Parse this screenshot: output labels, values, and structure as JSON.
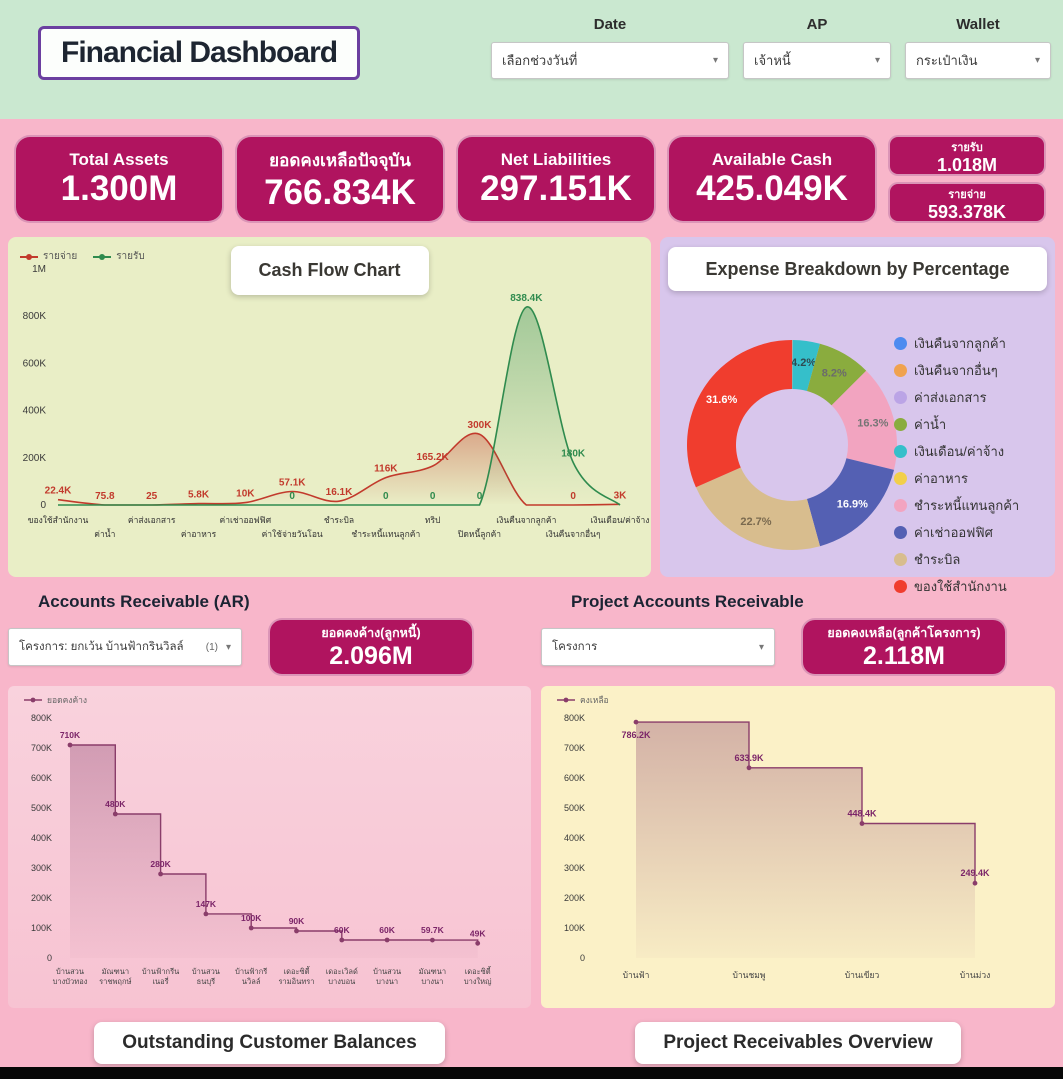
{
  "header": {
    "title": "Financial Dashboard",
    "filters": [
      {
        "label": "Date",
        "value": "เลือกช่วงวันที่"
      },
      {
        "label": "AP",
        "value": "เจ้าหนี้"
      },
      {
        "label": "Wallet",
        "value": "กระเป๋าเงิน"
      }
    ]
  },
  "kpi_cards": [
    {
      "label": "Total Assets",
      "value": "1.300M"
    },
    {
      "label": "ยอดคงเหลือปัจจุบัน",
      "value": "766.834K"
    },
    {
      "label": "Net Liabilities",
      "value": "297.151K"
    },
    {
      "label": "Available Cash",
      "value": "425.049K"
    }
  ],
  "kpi_small": [
    {
      "label": "รายรับ",
      "value": "1.018M"
    },
    {
      "label": "รายจ่าย",
      "value": "593.378K"
    }
  ],
  "sections": {
    "cashflow_title": "Cash Flow Chart",
    "expense_title": "Expense Breakdown by Percentage",
    "ar_header": "Accounts Receivable (AR)",
    "ar_filter_value": "โครงการ: ยกเว้น บ้านฟ้ากรินวิลล์",
    "ar_filter_count": "(1)",
    "ar_kpi_label": "ยอดคงค้าง(ลูกหนี้)",
    "ar_kpi_value": "2.096M",
    "ar_chart_title": "Outstanding Customer Balances",
    "proj_header": "Project Accounts Receivable",
    "proj_filter_value": "โครงการ",
    "proj_kpi_label": "ยอดคงเหลือ(ลูกค้าโครงการ)",
    "proj_kpi_value": "2.118M",
    "proj_chart_title": "Project Receivables Overview"
  },
  "chart_data": [
    {
      "type": "line",
      "title": "Cash Flow Chart",
      "categories": [
        "ของใช้สำนักงาน",
        "ค่าน้ำ",
        "ค่าส่งเอกสาร",
        "ค่าอาหาร",
        "ค่าเช่าออฟฟิศ",
        "ค่าใช้จ่ายวันโอน",
        "ชำระบิล",
        "ชำระหนี้แทนลูกค้า",
        "ทริป",
        "ปิดหนี้ลูกค้า",
        "เงินคืนจากลูกค้า",
        "เงินคืนจากอื่นๆ",
        "เงินเดือน/ค่าจ้าง"
      ],
      "ylim": [
        0,
        1000000
      ],
      "yticks": [
        {
          "v": 0,
          "label": "0"
        },
        {
          "v": 200000,
          "label": "200K"
        },
        {
          "v": 400000,
          "label": "400K"
        },
        {
          "v": 600000,
          "label": "600K"
        },
        {
          "v": 800000,
          "label": "800K"
        },
        {
          "v": 1000000,
          "label": "1M"
        }
      ],
      "grid": false,
      "legend_position": "top-left",
      "series": [
        {
          "name": "รายจ่าย",
          "color": "#c23a2c",
          "values": [
            22400,
            75.8,
            25,
            5800,
            10000,
            57100,
            16100,
            116000,
            165200,
            300000,
            0,
            0,
            3000
          ],
          "labels": [
            "22.4K",
            "75.8",
            "25",
            "5.8K",
            "10K",
            "57.1K",
            "16.1K",
            "116K",
            "165.2K",
            "300K",
            null,
            "0",
            "3K"
          ]
        },
        {
          "name": "รายรับ",
          "color": "#2f8b4e",
          "values": [
            0,
            0,
            0,
            0,
            0,
            0,
            0,
            0,
            0,
            0,
            838400,
            180000,
            0
          ],
          "labels": [
            null,
            null,
            null,
            null,
            null,
            "0",
            null,
            "0",
            "0",
            "0",
            "838.4K",
            "180K",
            null
          ]
        }
      ]
    },
    {
      "type": "pie",
      "donut": true,
      "title": "Expense Breakdown by Percentage",
      "legend_position": "right",
      "legend": [
        {
          "label": "เงินคืนจากลูกค้า",
          "color": "#4d8bf0"
        },
        {
          "label": "เงินคืนจากอื่นๆ",
          "color": "#f0a24f"
        },
        {
          "label": "ค่าส่งเอกสาร",
          "color": "#bba4e6"
        },
        {
          "label": "ค่าน้ำ",
          "color": "#8aac3e"
        },
        {
          "label": "เงินเดือน/ค่าจ้าง",
          "color": "#35bfca"
        },
        {
          "label": "ค่าอาหาร",
          "color": "#f2cf4a"
        },
        {
          "label": "ชำระหนี้แทนลูกค้า",
          "color": "#f2a4c0"
        },
        {
          "label": "ค่าเช่าออฟฟิศ",
          "color": "#5460b3"
        },
        {
          "label": "ชำระบิล",
          "color": "#d8bd8e"
        },
        {
          "label": "ของใช้สำนักงาน",
          "color": "#f03d2e"
        }
      ],
      "slices": [
        {
          "name": "เงินคืนจากลูกค้า",
          "color": "#4d8bf0",
          "pct": 0.02,
          "label": null
        },
        {
          "name": "เงินคืนจากอื่นๆ",
          "color": "#f0a24f",
          "pct": 0.05,
          "label": null
        },
        {
          "name": "ค่าส่งเอกสาร",
          "color": "#bba4e6",
          "pct": 0.02,
          "label": null
        },
        {
          "name": "ค่าอาหาร",
          "color": "#f2cf4a",
          "pct": 0.01,
          "label": null
        },
        {
          "name": "เงินเดือน/ค่าจ้าง",
          "color": "#35bfca",
          "pct": 4.2,
          "label": "4.2%",
          "label_color": "#2f4a52"
        },
        {
          "name": "ค่าน้ำ",
          "color": "#8aac3e",
          "pct": 8.2,
          "label": "8.2%",
          "label_color": "#6b6b6b"
        },
        {
          "name": "ชำระหนี้แทนลูกค้า",
          "color": "#f2a4c0",
          "pct": 16.3,
          "label": "16.3%",
          "label_color": "#757575"
        },
        {
          "name": "ค่าเช่าออฟฟิศ",
          "color": "#5460b3",
          "pct": 16.9,
          "label": "16.9%",
          "label_color": "#ffffff"
        },
        {
          "name": "ชำระบิล",
          "color": "#d8bd8e",
          "pct": 22.7,
          "label": "22.7%",
          "label_color": "#7a6a4f"
        },
        {
          "name": "ของใช้สำนักงาน",
          "color": "#f03d2e",
          "pct": 31.6,
          "label": "31.6%",
          "label_color": "#ffffff"
        }
      ]
    },
    {
      "type": "line",
      "step": true,
      "title": "Outstanding Customer Balances",
      "series_name": "ยอดคงค้าง",
      "color": "#8a3d6a",
      "categories": [
        [
          "บ้านสวน",
          "บางบัวทอง"
        ],
        [
          "มัณฑนา",
          "ราชพฤกษ์"
        ],
        [
          "บ้านฟ้ากรีน",
          "เนอรี่"
        ],
        [
          "บ้านสวน",
          "ธนบุรี"
        ],
        [
          "บ้านฟ้ากรี",
          "นวิลล์"
        ],
        [
          "เดอะซิตี้",
          "รามอินทรา"
        ],
        [
          "เดอะเวิลด์",
          "บางบอน"
        ],
        [
          "บ้านสวน",
          "บางนา"
        ],
        [
          "มัณฑนา",
          "บางนา"
        ],
        [
          "เดอะซิตี้",
          "บางใหญ่"
        ]
      ],
      "values": [
        710000,
        480000,
        280000,
        147000,
        100000,
        90000,
        60000,
        60000,
        59700,
        49000
      ],
      "value_labels": [
        "710K",
        "480K",
        "280K",
        "147K",
        "100K",
        "90K",
        "60K",
        "60K",
        "59.7K",
        "49K"
      ],
      "ylim": [
        0,
        800000
      ],
      "yticks": [
        "0",
        "100K",
        "200K",
        "300K",
        "400K",
        "500K",
        "600K",
        "700K",
        "800K"
      ]
    },
    {
      "type": "line",
      "step": true,
      "title": "Project Receivables Overview",
      "series_name": "คงเหลือ",
      "color": "#8a3d6a",
      "categories": [
        [
          "บ้านฟ้า"
        ],
        [
          "บ้านชมพู"
        ],
        [
          "บ้านเขียว"
        ],
        [
          "บ้านม่วง"
        ]
      ],
      "values": [
        786200,
        633900,
        448400,
        249400
      ],
      "value_labels": [
        "786.2K",
        "633.9K",
        "448.4K",
        "249.4K"
      ],
      "ylim": [
        0,
        800000
      ],
      "yticks": [
        "0",
        "100K",
        "200K",
        "300K",
        "400K",
        "500K",
        "600K",
        "700K",
        "800K"
      ]
    }
  ]
}
